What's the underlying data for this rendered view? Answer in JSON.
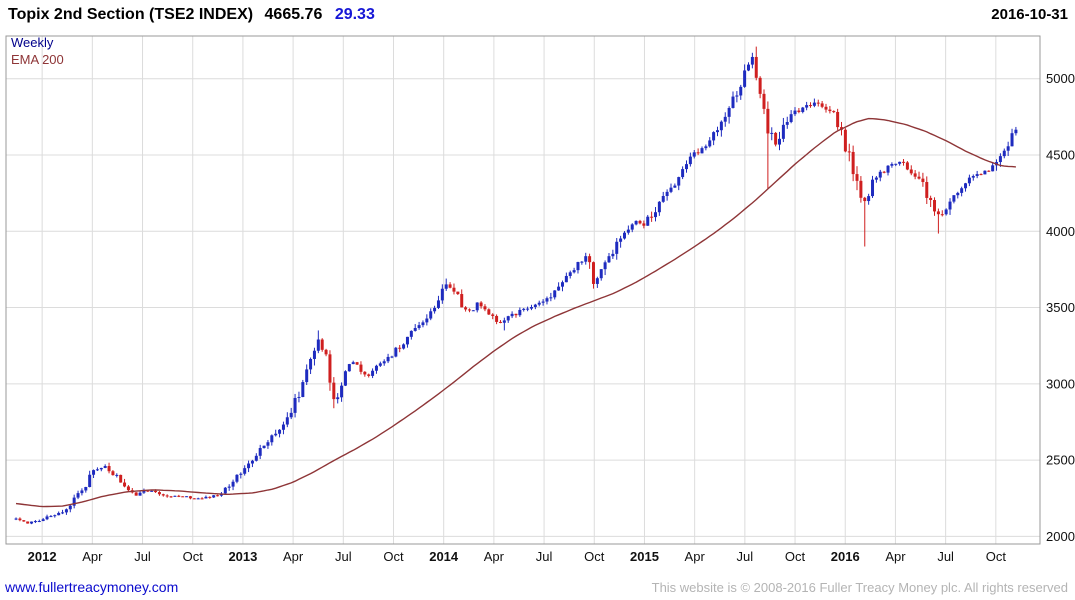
{
  "header": {
    "title": "Topix 2nd Section (TSE2 INDEX)",
    "price": "4665.76",
    "change": "29.33",
    "date": "2016-10-31"
  },
  "legend": {
    "timeframe": "Weekly",
    "ema": "EMA 200"
  },
  "footer": {
    "site": "www.fullertreacymoney.com",
    "copyright": "This website is © 2008-2016 Fuller Treacy Money plc. All rights reserved"
  },
  "colors": {
    "up": "#1e2bbf",
    "down": "#cf1f1f",
    "ema": "#8e3537",
    "grid": "#dcdcdc",
    "border": "#999999",
    "axis_text": "#111111",
    "change_text": "#1616d6",
    "timeframe_text": "#00008b",
    "link": "#0a0acd",
    "copyright_text": "#b4b4b4"
  },
  "chart_data": {
    "type": "candlestick",
    "timeframe": "weekly",
    "title": "Topix 2nd Section (TSE2 INDEX)",
    "last_price": 4665.76,
    "change": 29.33,
    "as_of_date": "2016-10-31",
    "grid": true,
    "legend_position": "top-left",
    "ylim": [
      1950,
      5280
    ],
    "yticks": [
      2000,
      2500,
      3000,
      3500,
      4000,
      4500,
      5000
    ],
    "xlim": [
      2011.82,
      2016.97
    ],
    "xticks": [
      {
        "t": 2012.0,
        "label": "2012",
        "year": true
      },
      {
        "t": 2012.25,
        "label": "Apr",
        "year": false
      },
      {
        "t": 2012.5,
        "label": "Jul",
        "year": false
      },
      {
        "t": 2012.75,
        "label": "Oct",
        "year": false
      },
      {
        "t": 2013.0,
        "label": "2013",
        "year": true
      },
      {
        "t": 2013.25,
        "label": "Apr",
        "year": false
      },
      {
        "t": 2013.5,
        "label": "Jul",
        "year": false
      },
      {
        "t": 2013.75,
        "label": "Oct",
        "year": false
      },
      {
        "t": 2014.0,
        "label": "2014",
        "year": true
      },
      {
        "t": 2014.25,
        "label": "Apr",
        "year": false
      },
      {
        "t": 2014.5,
        "label": "Jul",
        "year": false
      },
      {
        "t": 2014.75,
        "label": "Oct",
        "year": false
      },
      {
        "t": 2015.0,
        "label": "2015",
        "year": true
      },
      {
        "t": 2015.25,
        "label": "Apr",
        "year": false
      },
      {
        "t": 2015.5,
        "label": "Jul",
        "year": false
      },
      {
        "t": 2015.75,
        "label": "Oct",
        "year": false
      },
      {
        "t": 2016.0,
        "label": "2016",
        "year": true
      },
      {
        "t": 2016.25,
        "label": "Apr",
        "year": false
      },
      {
        "t": 2016.5,
        "label": "Jul",
        "year": false
      },
      {
        "t": 2016.75,
        "label": "Oct",
        "year": false
      }
    ],
    "overlays": [
      {
        "name": "EMA 200",
        "type": "ema",
        "period": 200
      }
    ],
    "weeks": 259,
    "price_anchors": [
      [
        2011.87,
        2115
      ],
      [
        2011.92,
        2085
      ],
      [
        2011.98,
        2105
      ],
      [
        2012.04,
        2130
      ],
      [
        2012.1,
        2165
      ],
      [
        2012.16,
        2240
      ],
      [
        2012.21,
        2330
      ],
      [
        2012.26,
        2430
      ],
      [
        2012.31,
        2465
      ],
      [
        2012.35,
        2415
      ],
      [
        2012.4,
        2350
      ],
      [
        2012.46,
        2260
      ],
      [
        2012.52,
        2300
      ],
      [
        2012.58,
        2285
      ],
      [
        2012.64,
        2260
      ],
      [
        2012.7,
        2265
      ],
      [
        2012.76,
        2250
      ],
      [
        2012.82,
        2255
      ],
      [
        2012.88,
        2275
      ],
      [
        2012.94,
        2340
      ],
      [
        2013.0,
        2430
      ],
      [
        2013.06,
        2530
      ],
      [
        2013.12,
        2620
      ],
      [
        2013.18,
        2710
      ],
      [
        2013.24,
        2830
      ],
      [
        2013.3,
        3000
      ],
      [
        2013.35,
        3180
      ],
      [
        2013.38,
        3310
      ],
      [
        2013.42,
        3140
      ],
      [
        2013.46,
        2880
      ],
      [
        2013.5,
        3020
      ],
      [
        2013.54,
        3160
      ],
      [
        2013.58,
        3090
      ],
      [
        2013.62,
        3040
      ],
      [
        2013.67,
        3130
      ],
      [
        2013.72,
        3160
      ],
      [
        2013.77,
        3230
      ],
      [
        2013.82,
        3300
      ],
      [
        2013.87,
        3380
      ],
      [
        2013.92,
        3430
      ],
      [
        2013.97,
        3540
      ],
      [
        2014.02,
        3660
      ],
      [
        2014.07,
        3570
      ],
      [
        2014.12,
        3460
      ],
      [
        2014.17,
        3530
      ],
      [
        2014.22,
        3470
      ],
      [
        2014.27,
        3390
      ],
      [
        2014.32,
        3430
      ],
      [
        2014.37,
        3470
      ],
      [
        2014.42,
        3490
      ],
      [
        2014.47,
        3520
      ],
      [
        2014.52,
        3560
      ],
      [
        2014.57,
        3640
      ],
      [
        2014.62,
        3720
      ],
      [
        2014.67,
        3790
      ],
      [
        2014.71,
        3840
      ],
      [
        2014.75,
        3660
      ],
      [
        2014.8,
        3760
      ],
      [
        2014.85,
        3880
      ],
      [
        2014.9,
        3990
      ],
      [
        2014.95,
        4070
      ],
      [
        2015.0,
        4040
      ],
      [
        2015.05,
        4140
      ],
      [
        2015.1,
        4230
      ],
      [
        2015.15,
        4320
      ],
      [
        2015.2,
        4420
      ],
      [
        2015.25,
        4500
      ],
      [
        2015.3,
        4570
      ],
      [
        2015.35,
        4640
      ],
      [
        2015.4,
        4760
      ],
      [
        2015.45,
        4890
      ],
      [
        2015.5,
        5040
      ],
      [
        2015.54,
        5130
      ],
      [
        2015.58,
        4890
      ],
      [
        2015.62,
        4660
      ],
      [
        2015.66,
        4560
      ],
      [
        2015.7,
        4720
      ],
      [
        2015.74,
        4770
      ],
      [
        2015.79,
        4800
      ],
      [
        2015.84,
        4840
      ],
      [
        2015.89,
        4810
      ],
      [
        2015.94,
        4770
      ],
      [
        2015.99,
        4620
      ],
      [
        2016.04,
        4380
      ],
      [
        2016.09,
        4170
      ],
      [
        2016.14,
        4330
      ],
      [
        2016.19,
        4400
      ],
      [
        2016.24,
        4440
      ],
      [
        2016.29,
        4450
      ],
      [
        2016.34,
        4370
      ],
      [
        2016.39,
        4290
      ],
      [
        2016.44,
        4140
      ],
      [
        2016.48,
        4090
      ],
      [
        2016.53,
        4230
      ],
      [
        2016.58,
        4300
      ],
      [
        2016.63,
        4350
      ],
      [
        2016.68,
        4380
      ],
      [
        2016.73,
        4410
      ],
      [
        2016.78,
        4500
      ],
      [
        2016.82,
        4610
      ],
      [
        2016.85,
        4665.76
      ]
    ],
    "ema_anchors": [
      [
        2011.87,
        2215
      ],
      [
        2012.0,
        2195
      ],
      [
        2012.1,
        2198
      ],
      [
        2012.2,
        2225
      ],
      [
        2012.3,
        2262
      ],
      [
        2012.42,
        2292
      ],
      [
        2012.55,
        2305
      ],
      [
        2012.68,
        2298
      ],
      [
        2012.8,
        2285
      ],
      [
        2012.92,
        2275
      ],
      [
        2013.05,
        2285
      ],
      [
        2013.15,
        2310
      ],
      [
        2013.25,
        2355
      ],
      [
        2013.35,
        2420
      ],
      [
        2013.45,
        2495
      ],
      [
        2013.55,
        2565
      ],
      [
        2013.65,
        2640
      ],
      [
        2013.75,
        2725
      ],
      [
        2013.85,
        2815
      ],
      [
        2013.95,
        2910
      ],
      [
        2014.05,
        3010
      ],
      [
        2014.15,
        3115
      ],
      [
        2014.25,
        3215
      ],
      [
        2014.35,
        3305
      ],
      [
        2014.45,
        3380
      ],
      [
        2014.55,
        3440
      ],
      [
        2014.65,
        3495
      ],
      [
        2014.75,
        3545
      ],
      [
        2014.85,
        3595
      ],
      [
        2014.95,
        3660
      ],
      [
        2015.05,
        3735
      ],
      [
        2015.15,
        3815
      ],
      [
        2015.25,
        3900
      ],
      [
        2015.35,
        3990
      ],
      [
        2015.45,
        4090
      ],
      [
        2015.55,
        4200
      ],
      [
        2015.65,
        4320
      ],
      [
        2015.75,
        4440
      ],
      [
        2015.85,
        4550
      ],
      [
        2015.95,
        4650
      ],
      [
        2016.05,
        4715
      ],
      [
        2016.12,
        4740
      ],
      [
        2016.2,
        4730
      ],
      [
        2016.3,
        4700
      ],
      [
        2016.4,
        4655
      ],
      [
        2016.5,
        4595
      ],
      [
        2016.6,
        4525
      ],
      [
        2016.7,
        4465
      ],
      [
        2016.78,
        4428
      ],
      [
        2016.85,
        4422
      ]
    ],
    "wick_lows": [
      [
        2013.46,
        2840
      ],
      [
        2014.3,
        3350
      ],
      [
        2015.62,
        4280
      ],
      [
        2016.09,
        3900
      ],
      [
        2016.46,
        3985
      ]
    ],
    "wick_highs": [
      [
        2013.38,
        3350
      ],
      [
        2014.02,
        3690
      ],
      [
        2015.54,
        5170
      ],
      [
        2015.84,
        4870
      ],
      [
        2016.83,
        4672
      ]
    ]
  }
}
